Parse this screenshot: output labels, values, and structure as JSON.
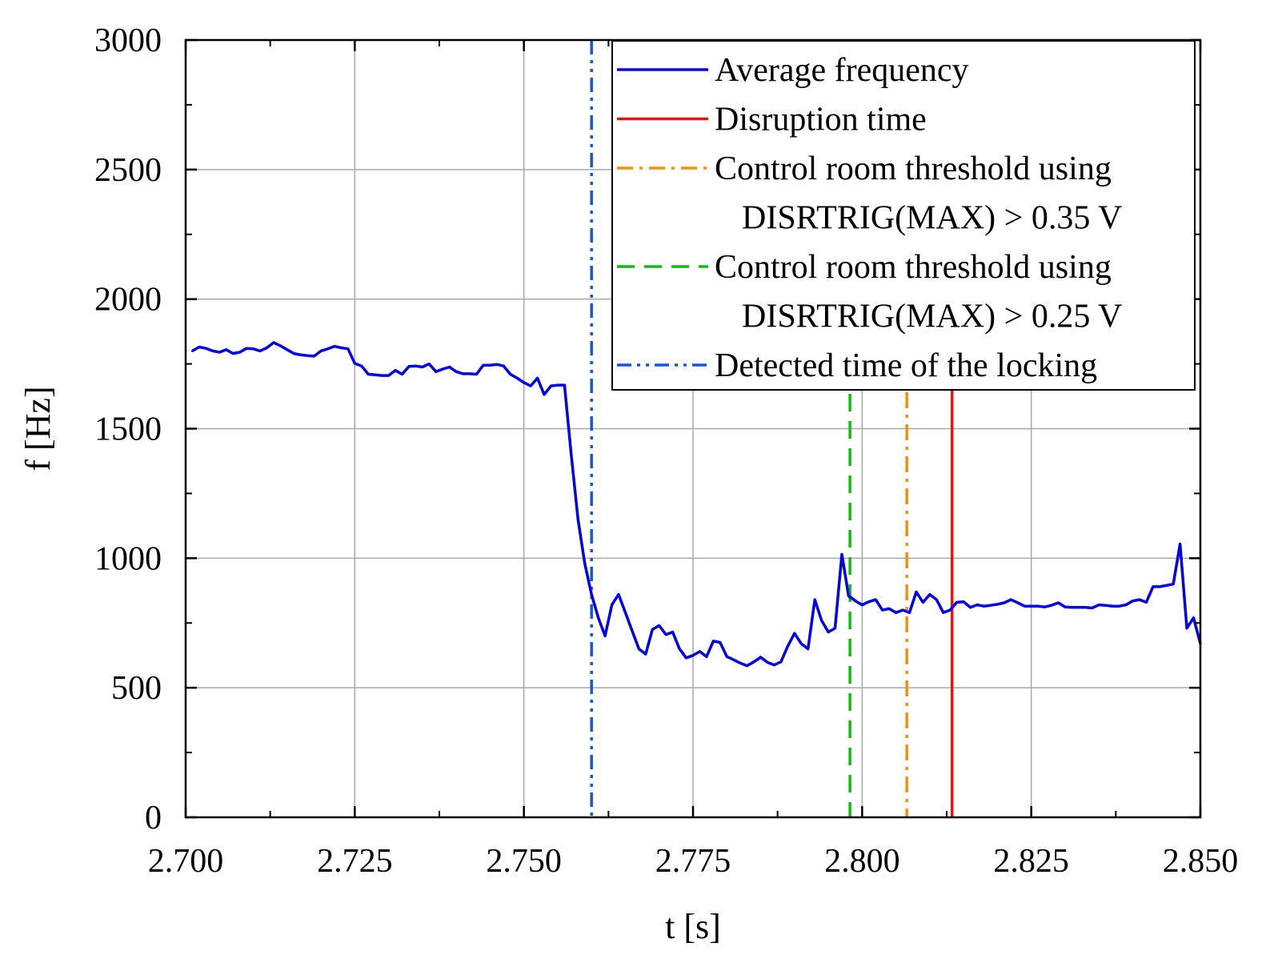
{
  "chart_data": {
    "type": "line",
    "xlabel": "t [s]",
    "ylabel": "f [Hz]",
    "xlim": [
      2.7,
      2.85
    ],
    "ylim": [
      0,
      3000
    ],
    "grid": true,
    "legend_position": "top-right",
    "x_ticks": [
      "2.700",
      "2.725",
      "2.750",
      "2.775",
      "2.800",
      "2.825",
      "2.850"
    ],
    "x_tick_values": [
      2.7,
      2.725,
      2.75,
      2.775,
      2.8,
      2.825,
      2.85
    ],
    "y_ticks": [
      "0",
      "500",
      "1000",
      "1500",
      "2000",
      "2500",
      "3000"
    ],
    "y_tick_values": [
      0,
      500,
      1000,
      1500,
      2000,
      2500,
      3000
    ],
    "series": [
      {
        "name": "Average frequency",
        "color": "#0000ee",
        "x": [
          2.701,
          2.702,
          2.703,
          2.704,
          2.705,
          2.706,
          2.707,
          2.708,
          2.709,
          2.71,
          2.711,
          2.712,
          2.713,
          2.714,
          2.715,
          2.716,
          2.717,
          2.718,
          2.719,
          2.72,
          2.721,
          2.722,
          2.723,
          2.724,
          2.725,
          2.726,
          2.727,
          2.728,
          2.729,
          2.73,
          2.731,
          2.732,
          2.733,
          2.734,
          2.735,
          2.736,
          2.737,
          2.738,
          2.739,
          2.74,
          2.741,
          2.742,
          2.743,
          2.744,
          2.745,
          2.746,
          2.747,
          2.748,
          2.749,
          2.75,
          2.751,
          2.752,
          2.753,
          2.754,
          2.755,
          2.756,
          2.757,
          2.758,
          2.759,
          2.76,
          2.761,
          2.762,
          2.763,
          2.764,
          2.765,
          2.766,
          2.767,
          2.768,
          2.769,
          2.77,
          2.771,
          2.772,
          2.773,
          2.774,
          2.775,
          2.776,
          2.777,
          2.778,
          2.779,
          2.78,
          2.781,
          2.782,
          2.783,
          2.784,
          2.785,
          2.786,
          2.787,
          2.788,
          2.789,
          2.79,
          2.791,
          2.792,
          2.793,
          2.794,
          2.795,
          2.796,
          2.797,
          2.798,
          2.799,
          2.8,
          2.801,
          2.802,
          2.803,
          2.804,
          2.805,
          2.806,
          2.807,
          2.808,
          2.809,
          2.81,
          2.811,
          2.812,
          2.813,
          2.814,
          2.815,
          2.816,
          2.817,
          2.818,
          2.819,
          2.82,
          2.821,
          2.822,
          2.823,
          2.824,
          2.825,
          2.826,
          2.827,
          2.828,
          2.829,
          2.83,
          2.831,
          2.832,
          2.833,
          2.834,
          2.835,
          2.836,
          2.837,
          2.838,
          2.839,
          2.84,
          2.841,
          2.842,
          2.843,
          2.844,
          2.845,
          2.846,
          2.847,
          2.848,
          2.849,
          2.85
        ],
        "values": [
          1800,
          1815,
          1810,
          1800,
          1795,
          1805,
          1790,
          1795,
          1810,
          1808,
          1800,
          1812,
          1832,
          1820,
          1805,
          1790,
          1785,
          1782,
          1780,
          1800,
          1808,
          1818,
          1812,
          1808,
          1752,
          1742,
          1710,
          1708,
          1705,
          1705,
          1725,
          1710,
          1740,
          1742,
          1738,
          1750,
          1720,
          1730,
          1738,
          1720,
          1712,
          1712,
          1710,
          1745,
          1745,
          1748,
          1742,
          1710,
          1695,
          1678,
          1665,
          1695,
          1632,
          1665,
          1668,
          1668,
          1400,
          1150,
          980,
          860,
          770,
          700,
          820,
          860,
          790,
          720,
          650,
          630,
          725,
          740,
          705,
          715,
          650,
          615,
          625,
          640,
          620,
          680,
          675,
          620,
          608,
          595,
          585,
          600,
          618,
          598,
          588,
          600,
          660,
          710,
          670,
          650,
          840,
          760,
          715,
          730,
          1015,
          855,
          835,
          820,
          832,
          840,
          800,
          805,
          790,
          800,
          790,
          870,
          830,
          860,
          840,
          790,
          800,
          830,
          832,
          810,
          820,
          815,
          818,
          822,
          828,
          840,
          828,
          815,
          815,
          815,
          812,
          818,
          828,
          812,
          810,
          810,
          810,
          808,
          820,
          818,
          815,
          815,
          820,
          835,
          840,
          830,
          890,
          890,
          895,
          900,
          1055,
          730,
          770,
          670
        ]
      }
    ],
    "vlines": [
      {
        "name": "Disruption time",
        "x": 2.8133,
        "color": "#ee1111",
        "style": "solid"
      },
      {
        "name": "Control room threshold using DISRTRIG(MAX) > 0.35 V",
        "x": 2.8066,
        "color": "#ff8c00",
        "style": "dash-dot"
      },
      {
        "name": "Control room threshold using DISRTRIG(MAX) > 0.25 V",
        "x": 2.7982,
        "color": "#11bb11",
        "style": "dashed"
      },
      {
        "name": "Detected time of the locking",
        "x": 2.76,
        "color": "#1155ee",
        "style": "dash-dot-dot"
      }
    ],
    "legend": [
      {
        "lines": [
          "Average frequency"
        ],
        "color": "#0000ee",
        "style": "solid"
      },
      {
        "lines": [
          "Disruption time"
        ],
        "color": "#ee1111",
        "style": "solid"
      },
      {
        "lines": [
          "Control room threshold using",
          "DISRTRIG(MAX) > 0.35 V"
        ],
        "color": "#ff8c00",
        "style": "dash-dot"
      },
      {
        "lines": [
          "Control room threshold using",
          "DISRTRIG(MAX) > 0.25 V"
        ],
        "color": "#11bb11",
        "style": "dashed"
      },
      {
        "lines": [
          "Detected time of the locking"
        ],
        "color": "#1155ee",
        "style": "dash-dot-dot"
      }
    ]
  }
}
